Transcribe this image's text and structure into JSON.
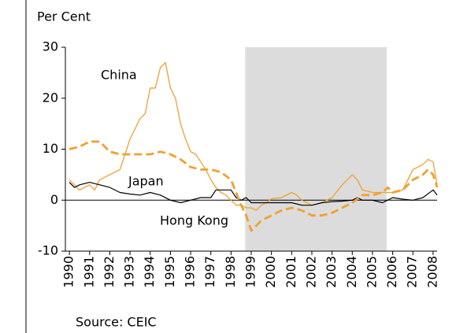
{
  "chart_data": {
    "type": "line",
    "title": "Per Cent",
    "source": "Source: CEIC",
    "xlim": [
      1989.8,
      2008.2
    ],
    "xticks": [
      1990,
      1991,
      1992,
      1993,
      1994,
      1995,
      1996,
      1997,
      1998,
      1999,
      2000,
      2001,
      2002,
      2003,
      2004,
      2005,
      2006,
      2007,
      2008
    ],
    "ylim": [
      -10,
      30
    ],
    "yticks": [
      -10,
      0,
      10,
      20,
      30
    ],
    "shaded_region": [
      1998.7,
      2005.7
    ],
    "shade_color": "#dcdcdc",
    "series": [
      {
        "name": "China",
        "color": "#f0a030",
        "dash": false,
        "width": 1.3,
        "x": [
          1990,
          1990.5,
          1991,
          1991.25,
          1991.5,
          1992,
          1992.5,
          1993,
          1993.5,
          1993.75,
          1994,
          1994.25,
          1994.5,
          1994.75,
          1995,
          1995.25,
          1995.5,
          1995.75,
          1996,
          1996.25,
          1996.5,
          1996.75,
          1997,
          1997.25,
          1997.5,
          1997.75,
          1998,
          1998.25,
          1998.5,
          1998.75,
          1999,
          1999.25,
          1999.5,
          1999.75,
          2000,
          2000.5,
          2001,
          2001.25,
          2001.5,
          2002,
          2002.5,
          2003,
          2003.5,
          2003.75,
          2004,
          2004.25,
          2004.5,
          2005,
          2005.5,
          2006,
          2006.5,
          2007,
          2007.5,
          2007.75,
          2008,
          2008.2
        ],
        "values": [
          4,
          2,
          3,
          2,
          4,
          5,
          6,
          12,
          16,
          17,
          22,
          22,
          26,
          27,
          22,
          20,
          15,
          12,
          9.5,
          9,
          7.5,
          6,
          4,
          2.5,
          1.5,
          1,
          0,
          -1,
          -1,
          -1.5,
          -1.5,
          -2,
          -1,
          -0.5,
          0.3,
          0.5,
          1.5,
          1,
          0,
          -1,
          -0.5,
          0.5,
          3,
          4,
          5,
          4,
          2,
          1.5,
          1.5,
          1.5,
          2,
          6,
          7,
          8,
          7.5,
          3
        ]
      },
      {
        "name": "Japan",
        "color": "#000000",
        "dash": false,
        "width": 1.2,
        "x": [
          1990,
          1990.25,
          1990.5,
          1991,
          1991.5,
          1992,
          1992.5,
          1993,
          1993.5,
          1994,
          1994.5,
          1995,
          1995.5,
          1996,
          1996.5,
          1997,
          1997.25,
          1997.75,
          1998,
          1998.25,
          1998.5,
          1998.75,
          1999,
          1999.5,
          2000,
          2000.5,
          2001,
          2001.5,
          2002,
          2002.5,
          2003,
          2003.5,
          2004,
          2004.25,
          2004.5,
          2005,
          2005.5,
          2006,
          2006.5,
          2007,
          2007.5,
          2008,
          2008.2
        ],
        "values": [
          3.5,
          2.5,
          3,
          3.5,
          3,
          2.5,
          1.5,
          1.2,
          1,
          1.5,
          1,
          0,
          -0.5,
          0,
          0.5,
          0.5,
          2,
          2,
          2,
          0.5,
          0,
          0.5,
          -0.5,
          -0.5,
          -0.5,
          -0.5,
          -0.5,
          -1,
          -1,
          -0.5,
          -0.3,
          -0.2,
          0,
          0.5,
          0,
          0,
          -0.5,
          0.5,
          0.2,
          0,
          0.5,
          2,
          1
        ]
      },
      {
        "name": "Hong Kong",
        "color": "#f0a030",
        "dash": true,
        "width": 2.8,
        "x": [
          1990,
          1990.5,
          1991,
          1991.5,
          1992,
          1992.5,
          1993,
          1993.5,
          1994,
          1994.5,
          1995,
          1995.5,
          1996,
          1996.5,
          1997,
          1997.5,
          1998,
          1998.5,
          1998.75,
          1999,
          1999.5,
          2000,
          2000.5,
          2001,
          2001.5,
          2002,
          2002.5,
          2003,
          2003.5,
          2004,
          2004.5,
          2005,
          2005.5,
          2005.75,
          2006,
          2006.5,
          2007,
          2007.5,
          2007.75,
          2008,
          2008.2
        ],
        "values": [
          10,
          10.5,
          11.5,
          11.5,
          9.5,
          9,
          9,
          9,
          9,
          9.5,
          9,
          8,
          6.5,
          6,
          6,
          5.5,
          4,
          -1,
          -3,
          -6,
          -4,
          -3,
          -2,
          -1.5,
          -2,
          -3,
          -3,
          -2.5,
          -1.5,
          -0.5,
          1,
          1,
          1.5,
          2.5,
          1.5,
          2,
          4,
          5,
          6,
          5,
          2.5
        ]
      }
    ]
  }
}
